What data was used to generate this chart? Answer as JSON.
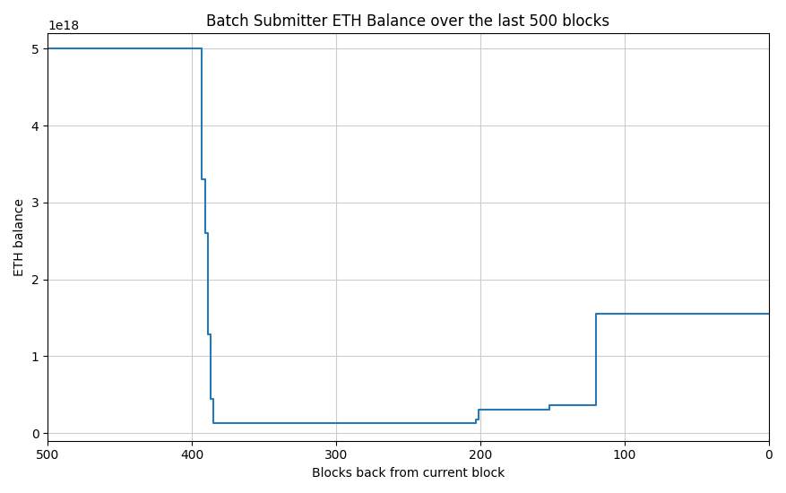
{
  "title": "Batch Submitter ETH Balance over the last 500 blocks",
  "xlabel": "Blocks back from current block",
  "ylabel": "ETH balance",
  "line_color": "#2878b5",
  "line_width": 1.5,
  "background_color": "#ffffff",
  "grid_color": "#cccccc",
  "xlim": [
    500,
    0
  ],
  "ylim": [
    -1e+17,
    5.2e+18
  ],
  "xticks": [
    500,
    400,
    300,
    200,
    100,
    0
  ],
  "yticks": [
    0,
    1e+18,
    2e+18,
    3e+18,
    4e+18,
    5e+18
  ],
  "segments": [
    [
      500,
      5e+18
    ],
    [
      393,
      5e+18
    ],
    [
      393,
      3.3e+18
    ],
    [
      391,
      3.3e+18
    ],
    [
      391,
      2.6e+18
    ],
    [
      389,
      2.6e+18
    ],
    [
      389,
      1.28e+18
    ],
    [
      387,
      1.28e+18
    ],
    [
      387,
      4.4e+17
    ],
    [
      385,
      4.4e+17
    ],
    [
      385,
      1.3e+17
    ],
    [
      203,
      1.3e+17
    ],
    [
      203,
      1.8e+17
    ],
    [
      201,
      1.8e+17
    ],
    [
      201,
      3e+17
    ],
    [
      152,
      3e+17
    ],
    [
      152,
      3.6e+17
    ],
    [
      120,
      3.6e+17
    ],
    [
      120,
      1.55e+18
    ],
    [
      0,
      1.55e+18
    ]
  ]
}
